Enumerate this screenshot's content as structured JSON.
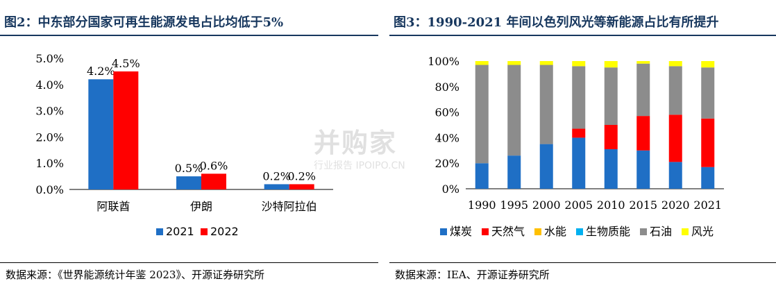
{
  "charts": [
    {
      "title": "图2：中东部分国家可再生能源发电占比均低于5%",
      "source": "数据来源：《世界能源统计年鉴 2023》、开源证券研究所"
    },
    {
      "title": "图3：1990-2021 年间以色列风光等新能源占比有所提升",
      "source": "数据来源：IEA、开源证券研究所"
    }
  ],
  "watermark": {
    "main": "并购家",
    "sub": "行业报告 IPOIPO.CN"
  },
  "chart_data": [
    {
      "type": "bar",
      "title": "图2：中东部分国家可再生能源发电占比均低于5%",
      "categories": [
        "阿联酋",
        "伊朗",
        "沙特阿拉伯"
      ],
      "series": [
        {
          "name": "2021",
          "values": [
            4.2,
            0.5,
            0.2
          ],
          "labels": [
            "4.2%",
            "0.5%",
            "0.2%"
          ],
          "color": "#1f6fc5"
        },
        {
          "name": "2022",
          "values": [
            4.5,
            0.6,
            0.2
          ],
          "labels": [
            "4.5%",
            "0.6%",
            "0.2%"
          ],
          "color": "#ff0000"
        }
      ],
      "ylim": [
        0,
        5
      ],
      "yticks": [
        "0.0%",
        "1.0%",
        "2.0%",
        "3.0%",
        "4.0%",
        "5.0%"
      ],
      "legend": "bottom"
    },
    {
      "type": "bar",
      "stacked": true,
      "title": "图3：1990-2021 年间以色列风光等新能源占比有所提升",
      "categories": [
        "1990",
        "1995",
        "2000",
        "2005",
        "2010",
        "2015",
        "2020",
        "2021"
      ],
      "series": [
        {
          "name": "煤炭",
          "values": [
            20,
            26,
            35,
            40,
            31,
            30,
            21,
            17
          ],
          "color": "#1f6fc5"
        },
        {
          "name": "天然气",
          "values": [
            0,
            0,
            0,
            7,
            19,
            27,
            37,
            38
          ],
          "color": "#ff0000"
        },
        {
          "name": "水能",
          "values": [
            0,
            0,
            0,
            0,
            0,
            0,
            0,
            0
          ],
          "color": "#ffc000"
        },
        {
          "name": "生物质能",
          "values": [
            0,
            0,
            0,
            0,
            0,
            0,
            0,
            0
          ],
          "color": "#00b0f0"
        },
        {
          "name": "石油",
          "values": [
            77,
            71,
            62,
            49,
            45,
            41,
            38,
            40
          ],
          "color": "#8c8c8c"
        },
        {
          "name": "风光",
          "values": [
            3,
            3,
            3,
            4,
            5,
            2,
            4,
            5
          ],
          "color": "#ffff00"
        }
      ],
      "ylim": [
        0,
        100
      ],
      "yticks": [
        "0%",
        "20%",
        "40%",
        "60%",
        "80%",
        "100%"
      ],
      "legend": "bottom"
    }
  ]
}
